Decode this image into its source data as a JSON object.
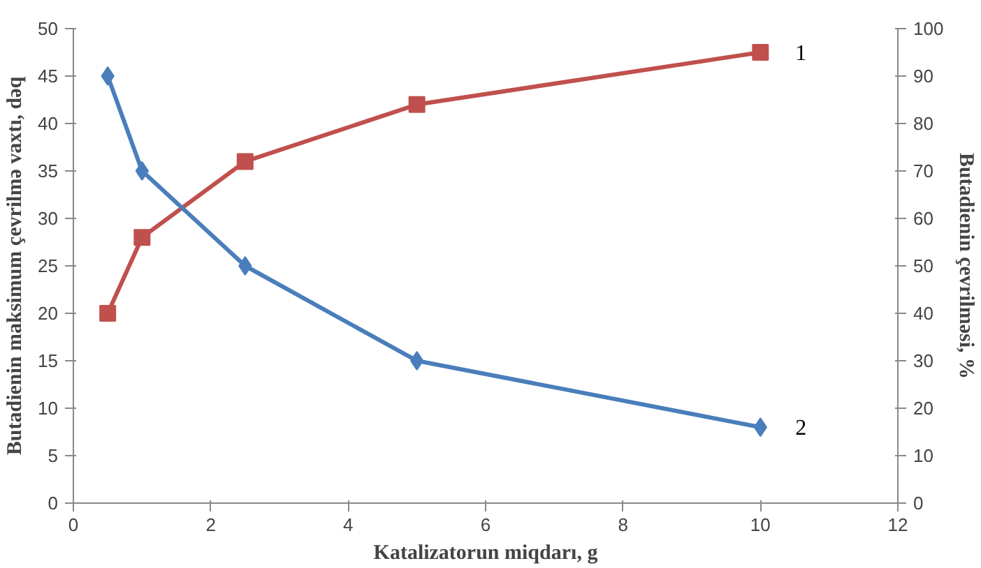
{
  "chart_data": {
    "type": "line",
    "xlabel": "Katalizatorun miqdarı, g",
    "ylabel": "Butadienin maksimum çevrilmə vaxtı, dəq",
    "y2label": "Butadienin çevrilməsi, %",
    "x": [
      0.5,
      1,
      2.5,
      5,
      10
    ],
    "series": [
      {
        "name": "1",
        "color": "#c0504d",
        "values": [
          40,
          56,
          72,
          84,
          95
        ],
        "axis": "y2",
        "marker": "square"
      },
      {
        "name": "2",
        "color": "#4a7ebb",
        "values": [
          45,
          35,
          25,
          15,
          8
        ],
        "marker": "diamond"
      }
    ],
    "xlim": [
      0,
      12
    ],
    "xticks": [
      0,
      2,
      4,
      6,
      8,
      10,
      12
    ],
    "ylim": [
      0,
      50
    ],
    "yticks": [
      0,
      5,
      10,
      15,
      20,
      25,
      30,
      35,
      40,
      45,
      50
    ],
    "y2lim": [
      0,
      100
    ],
    "y2ticks": [
      0,
      10,
      20,
      30,
      40,
      50,
      60,
      70,
      80,
      90,
      100
    ],
    "grid": false,
    "line_style": "solid"
  }
}
